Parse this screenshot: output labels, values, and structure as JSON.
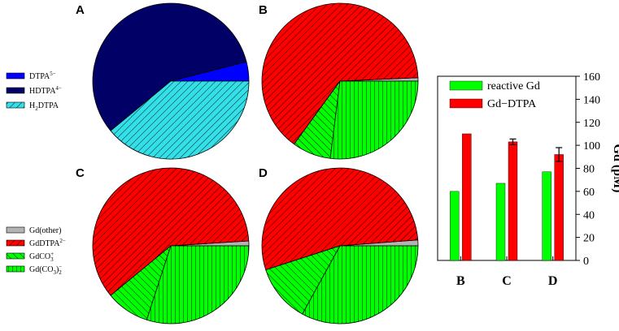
{
  "chart_data": [
    {
      "type": "pie",
      "panel": "A",
      "slices": [
        {
          "label": "DTPA5−",
          "value": 4.0,
          "color": "#0000ff",
          "pattern": "solid"
        },
        {
          "label": "HDTPA4−",
          "value": 57.0,
          "color": "#000066",
          "pattern": "solid"
        },
        {
          "label": "H2DTPA3−",
          "value": 39.0,
          "color": "#33e0e8",
          "pattern": "diagonal"
        }
      ]
    },
    {
      "type": "pie",
      "panel": "B",
      "slices": [
        {
          "label": "Gd(other)",
          "value": 0.7,
          "color": "#b3b3b3",
          "pattern": "solid"
        },
        {
          "label": "GdDTPA2−",
          "value": 64.3,
          "color": "#ff0000",
          "pattern": "diagonal"
        },
        {
          "label": "GdCO3+",
          "value": 8.0,
          "color": "#00ff00",
          "pattern": "diagonal-alt"
        },
        {
          "label": "Gd(CO3)2−",
          "value": 27.0,
          "color": "#00ff00",
          "pattern": "vertical"
        }
      ]
    },
    {
      "type": "pie",
      "panel": "C",
      "slices": [
        {
          "label": "Gd(other)",
          "value": 1.0,
          "color": "#b3b3b3",
          "pattern": "solid"
        },
        {
          "label": "GdDTPA2−",
          "value": 60.0,
          "color": "#ff0000",
          "pattern": "diagonal"
        },
        {
          "label": "GdCO3+",
          "value": 9.0,
          "color": "#00ff00",
          "pattern": "diagonal-alt"
        },
        {
          "label": "Gd(CO3)2−",
          "value": 30.0,
          "color": "#00ff00",
          "pattern": "vertical"
        }
      ]
    },
    {
      "type": "pie",
      "panel": "D",
      "slices": [
        {
          "label": "Gd(other)",
          "value": 1.2,
          "color": "#b3b3b3",
          "pattern": "solid"
        },
        {
          "label": "GdDTPA2−",
          "value": 53.8,
          "color": "#ff0000",
          "pattern": "diagonal"
        },
        {
          "label": "GdCO3+",
          "value": 12.0,
          "color": "#00ff00",
          "pattern": "diagonal-alt"
        },
        {
          "label": "Gd(CO3)2−",
          "value": 33.0,
          "color": "#00ff00",
          "pattern": "vertical"
        }
      ]
    },
    {
      "type": "bar",
      "categories": [
        "B",
        "C",
        "D"
      ],
      "series": [
        {
          "name": "reactive Gd",
          "color": "#00ff00",
          "values": [
            60,
            67,
            77
          ]
        },
        {
          "name": "Gd−DTPA",
          "color": "#ff0000",
          "values": [
            110,
            103,
            92
          ],
          "errors": [
            0,
            2.5,
            6
          ]
        }
      ],
      "ylabel": "Gd (pM)",
      "ylim": [
        0,
        160
      ],
      "yticks": [
        0,
        20,
        40,
        60,
        80,
        100,
        120,
        140,
        160
      ],
      "legend": "top-left"
    }
  ],
  "legend_dtpa": [
    {
      "base": "DTPA",
      "sup": "5−",
      "color": "#0000ff",
      "pattern": "solid"
    },
    {
      "base": "HDTPA",
      "sup": "4−",
      "color": "#000066",
      "pattern": "solid"
    },
    {
      "pre": "H",
      "sub": "2",
      "base": "DTPA",
      "sup": "3−",
      "color": "#33e0e8",
      "pattern": "diagonal"
    }
  ],
  "legend_gd": [
    {
      "base": "Gd(other)",
      "color": "#b3b3b3",
      "pattern": "solid"
    },
    {
      "base": "GdDTPA",
      "sup": "2−",
      "color": "#ff0000",
      "pattern": "diagonal"
    },
    {
      "base": "GdCO",
      "sub": "3",
      "sup": "+",
      "color": "#00ff00",
      "pattern": "diagonal-alt"
    },
    {
      "base": "Gd(CO",
      "sub": "3",
      "mid": ")",
      "sub2": "2",
      "sup": "−",
      "color": "#00ff00",
      "pattern": "vertical"
    }
  ],
  "panel_labels": [
    "A",
    "B",
    "C",
    "D"
  ]
}
